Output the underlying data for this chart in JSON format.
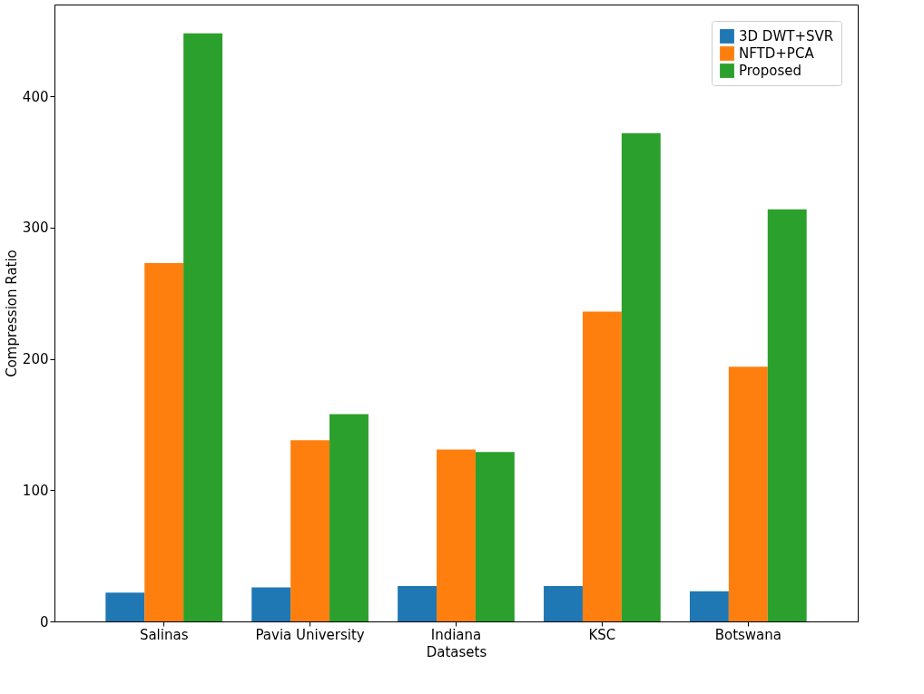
{
  "chart_data": {
    "type": "bar",
    "xlabel": "Datasets",
    "ylabel": "Compression Ratio",
    "categories": [
      "Salinas",
      "Pavia University",
      "Indiana",
      "KSC",
      "Botswana"
    ],
    "series": [
      {
        "name": "3D DWT+SVR",
        "color": "#1f77b4",
        "values": [
          22,
          26,
          27,
          27,
          23
        ]
      },
      {
        "name": "NFTD+PCA",
        "color": "#ff7f0e",
        "values": [
          273,
          138,
          131,
          236,
          194
        ]
      },
      {
        "name": "Proposed",
        "color": "#2ca02c",
        "values": [
          448,
          158,
          129,
          372,
          314
        ]
      }
    ],
    "ylim": [
      0,
      470
    ],
    "yticks": [
      0,
      100,
      200,
      300,
      400
    ],
    "grid": false,
    "legend": "top right"
  }
}
